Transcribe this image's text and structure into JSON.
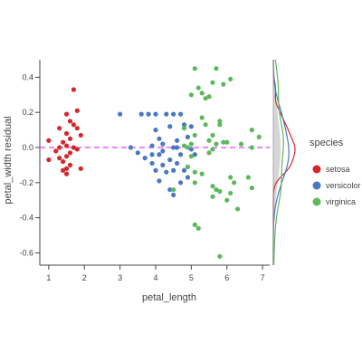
{
  "chart_data": {
    "type": "scatter",
    "xlabel": "petal_length",
    "ylabel": "petal_width residual",
    "xlim": [
      0.75,
      7.2
    ],
    "ylim": [
      -0.67,
      0.5
    ],
    "x_ticks": [
      1,
      2,
      3,
      4,
      5,
      6,
      7
    ],
    "y_ticks": [
      0.4,
      0.2,
      0.0,
      -0.2,
      -0.4,
      -0.6
    ],
    "y_tick_labels": [
      "0.4",
      "0.2",
      "0.0",
      "-0.2",
      "-0.4",
      "-0.6"
    ],
    "grid": false,
    "reference_line": {
      "y": 0,
      "style": "dashed",
      "color": "#e040fb"
    },
    "legend": {
      "title": "species",
      "placement": "right",
      "entries": [
        "setosa",
        "versicolor",
        "virginica"
      ]
    },
    "colors": {
      "setosa": "#d62728",
      "versicolor": "#4a78c2",
      "virginica": "#5cb85c",
      "marginal_fill": "#cccccc"
    },
    "marginal": "density of residuals by species (right margin)",
    "series": [
      {
        "name": "setosa",
        "points": [
          [
            1.0,
            0.04
          ],
          [
            1.2,
            -0.02
          ],
          [
            1.3,
            0.0
          ],
          [
            1.3,
            -0.06
          ],
          [
            1.4,
            0.03
          ],
          [
            1.4,
            -0.08
          ],
          [
            1.4,
            -0.13
          ],
          [
            1.5,
            0.19
          ],
          [
            1.5,
            0.08
          ],
          [
            1.5,
            0.01
          ],
          [
            1.5,
            -0.05
          ],
          [
            1.5,
            -0.12
          ],
          [
            1.6,
            0.15
          ],
          [
            1.6,
            0.05
          ],
          [
            1.6,
            -0.03
          ],
          [
            1.6,
            -0.1
          ],
          [
            1.7,
            0.13
          ],
          [
            1.7,
            0.33
          ],
          [
            1.7,
            0.0
          ],
          [
            1.8,
            0.21
          ],
          [
            1.8,
            0.11
          ],
          [
            1.8,
            -0.01
          ],
          [
            1.9,
            0.07
          ],
          [
            1.9,
            -0.12
          ],
          [
            1.0,
            -0.07
          ],
          [
            1.5,
            -0.15
          ],
          [
            1.3,
            0.11
          ]
        ]
      },
      {
        "name": "versicolor",
        "points": [
          [
            3.0,
            0.19
          ],
          [
            3.3,
            0.0
          ],
          [
            3.5,
            -0.03
          ],
          [
            3.6,
            0.19
          ],
          [
            3.7,
            -0.06
          ],
          [
            3.8,
            0.19
          ],
          [
            3.9,
            -0.09
          ],
          [
            3.9,
            0.01
          ],
          [
            4.0,
            -0.13
          ],
          [
            4.0,
            0.1
          ],
          [
            4.0,
            0.19
          ],
          [
            4.1,
            -0.19
          ],
          [
            4.1,
            0.05
          ],
          [
            4.1,
            -0.04
          ],
          [
            4.2,
            -0.1
          ],
          [
            4.2,
            0.02
          ],
          [
            4.3,
            0.19
          ],
          [
            4.3,
            -0.14
          ],
          [
            4.4,
            -0.07
          ],
          [
            4.4,
            0.12
          ],
          [
            4.5,
            0.0
          ],
          [
            4.5,
            -0.13
          ],
          [
            4.5,
            -0.27
          ],
          [
            4.5,
            0.19
          ],
          [
            4.6,
            0.04
          ],
          [
            4.6,
            -0.09
          ],
          [
            4.7,
            0.19
          ],
          [
            4.7,
            -0.04
          ],
          [
            4.7,
            -0.2
          ],
          [
            4.8,
            0.13
          ],
          [
            4.8,
            -0.13
          ],
          [
            4.9,
            0.06
          ],
          [
            4.9,
            -0.17
          ],
          [
            5.0,
            -0.01
          ],
          [
            5.0,
            0.12
          ],
          [
            5.1,
            -0.04
          ],
          [
            4.4,
            -0.24
          ],
          [
            4.6,
            0.0
          ],
          [
            4.2,
            -0.02
          ],
          [
            3.9,
            -0.04
          ]
        ]
      },
      {
        "name": "virginica",
        "points": [
          [
            4.5,
            -0.24
          ],
          [
            4.8,
            0.11
          ],
          [
            4.8,
            0.01
          ],
          [
            4.9,
            0.0
          ],
          [
            4.9,
            -0.11
          ],
          [
            5.0,
            0.3
          ],
          [
            5.0,
            -0.05
          ],
          [
            5.0,
            0.02
          ],
          [
            5.1,
            0.07
          ],
          [
            5.1,
            0.45
          ],
          [
            5.1,
            -0.44
          ],
          [
            5.1,
            -0.14
          ],
          [
            5.1,
            -0.2
          ],
          [
            5.2,
            0.34
          ],
          [
            5.2,
            -0.46
          ],
          [
            5.3,
            0.31
          ],
          [
            5.3,
            0.17
          ],
          [
            5.4,
            0.13
          ],
          [
            5.5,
            0.29
          ],
          [
            5.5,
            0.04
          ],
          [
            5.6,
            0.37
          ],
          [
            5.6,
            -0.28
          ],
          [
            5.6,
            -0.22
          ],
          [
            5.6,
            0.07
          ],
          [
            5.7,
            0.45
          ],
          [
            5.7,
            -0.24
          ],
          [
            5.7,
            0.02
          ],
          [
            5.8,
            0.13
          ],
          [
            5.8,
            -0.25
          ],
          [
            5.8,
            0.15
          ],
          [
            5.8,
            -0.62
          ],
          [
            5.9,
            0.03
          ],
          [
            6.0,
            0.03
          ],
          [
            6.0,
            -0.3
          ],
          [
            6.1,
            0.39
          ],
          [
            6.1,
            -0.26
          ],
          [
            6.1,
            -0.17
          ],
          [
            6.3,
            -0.35
          ],
          [
            6.4,
            0.02
          ],
          [
            6.6,
            -0.17
          ],
          [
            6.7,
            0.0
          ],
          [
            6.7,
            -0.23
          ],
          [
            6.7,
            0.1
          ],
          [
            6.9,
            0.06
          ],
          [
            5.4,
            0.28
          ],
          [
            5.5,
            -0.03
          ],
          [
            5.6,
            -0.01
          ],
          [
            6.2,
            -0.2
          ],
          [
            5.9,
            0.36
          ],
          [
            5.3,
            -0.15
          ]
        ]
      }
    ]
  }
}
